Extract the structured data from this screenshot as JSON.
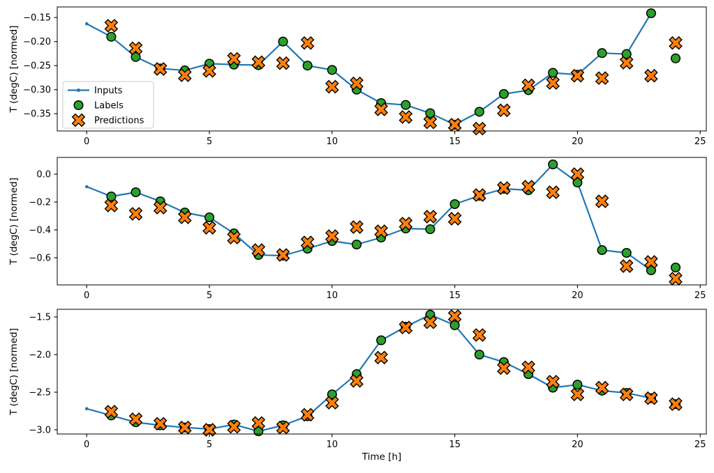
{
  "figure": {
    "xlabel": "Time [h]",
    "ylabel": "T (degC) [normed]",
    "background": "#ffffff",
    "legend": {
      "items": [
        {
          "label": "Inputs",
          "kind": "line",
          "color": "#1f77b4"
        },
        {
          "label": "Labels",
          "kind": "circle",
          "color": "#2ca02c"
        },
        {
          "label": "Predictions",
          "kind": "x",
          "color": "#ff7f0e"
        }
      ]
    },
    "colors": {
      "inputs_line": "#1f77b4",
      "labels_marker": "#2ca02c",
      "predictions_marker": "#ff7f0e",
      "marker_edge": "#000000",
      "axes_frame": "#000000",
      "legend_border": "#cccccc"
    }
  },
  "chart_data": [
    {
      "type": "line",
      "ylabel": "T (degC) [normed]",
      "xlim": [
        -1.2,
        25.25
      ],
      "ylim": [
        -0.386,
        -0.128
      ],
      "xticks": [
        0,
        5,
        10,
        15,
        20,
        25
      ],
      "xticklabels": [
        "0",
        "5",
        "10",
        "15",
        "20",
        "25"
      ],
      "yticks": [
        -0.15,
        -0.2,
        -0.25,
        -0.3,
        -0.35
      ],
      "yticklabels": [
        "−0.15",
        "−0.20",
        "−0.25",
        "−0.30",
        "−0.35"
      ],
      "legend": true,
      "series": [
        {
          "name": "Inputs",
          "kind": "line-with-dots",
          "color": "#1f77b4",
          "x": [
            0,
            1,
            2,
            3,
            4,
            5,
            6,
            7,
            8,
            9,
            10,
            11,
            12,
            13,
            14,
            15,
            16,
            17,
            18,
            19,
            20,
            21,
            22,
            23
          ],
          "y": [
            -0.163,
            -0.19,
            -0.232,
            -0.256,
            -0.26,
            -0.246,
            -0.248,
            -0.249,
            -0.2,
            -0.25,
            -0.259,
            -0.3,
            -0.328,
            -0.332,
            -0.349,
            -0.373,
            -0.346,
            -0.309,
            -0.301,
            -0.265,
            -0.269,
            -0.224,
            -0.226,
            -0.141
          ]
        },
        {
          "name": "Labels",
          "kind": "scatter-circle",
          "color": "#2ca02c",
          "edge": "#000000",
          "x": [
            1,
            2,
            3,
            4,
            5,
            6,
            7,
            8,
            9,
            10,
            11,
            12,
            13,
            14,
            15,
            16,
            17,
            18,
            19,
            20,
            21,
            22,
            23,
            24
          ],
          "y": [
            -0.19,
            -0.232,
            -0.256,
            -0.26,
            -0.246,
            -0.248,
            -0.249,
            -0.2,
            -0.25,
            -0.259,
            -0.3,
            -0.328,
            -0.332,
            -0.349,
            -0.373,
            -0.346,
            -0.309,
            -0.301,
            -0.265,
            -0.269,
            -0.224,
            -0.226,
            -0.141,
            -0.235
          ]
        },
        {
          "name": "Predictions",
          "kind": "scatter-x",
          "color": "#ff7f0e",
          "edge": "#000000",
          "x": [
            1,
            2,
            3,
            4,
            5,
            6,
            7,
            8,
            9,
            10,
            11,
            12,
            13,
            14,
            15,
            16,
            17,
            18,
            19,
            20,
            21,
            22,
            23,
            24
          ],
          "y": [
            -0.167,
            -0.214,
            -0.257,
            -0.27,
            -0.261,
            -0.236,
            -0.243,
            -0.245,
            -0.203,
            -0.294,
            -0.287,
            -0.341,
            -0.357,
            -0.368,
            -0.373,
            -0.381,
            -0.343,
            -0.291,
            -0.286,
            -0.271,
            -0.276,
            -0.244,
            -0.271,
            -0.203
          ]
        }
      ]
    },
    {
      "type": "line",
      "ylabel": "T (degC) [normed]",
      "xlim": [
        -1.2,
        25.25
      ],
      "ylim": [
        -0.795,
        0.12
      ],
      "xticks": [
        0,
        5,
        10,
        15,
        20,
        25
      ],
      "xticklabels": [
        "0",
        "5",
        "10",
        "15",
        "20",
        "25"
      ],
      "yticks": [
        0.0,
        -0.2,
        -0.4,
        -0.6
      ],
      "yticklabels": [
        "0.0",
        "−0.2",
        "−0.4",
        "−0.6"
      ],
      "legend": false,
      "series": [
        {
          "name": "Inputs",
          "kind": "line-with-dots",
          "color": "#1f77b4",
          "x": [
            0,
            1,
            2,
            3,
            4,
            5,
            6,
            7,
            8,
            9,
            10,
            11,
            12,
            13,
            14,
            15,
            16,
            17,
            18,
            19,
            20,
            21,
            22,
            23
          ],
          "y": [
            -0.09,
            -0.16,
            -0.13,
            -0.195,
            -0.275,
            -0.31,
            -0.425,
            -0.58,
            -0.585,
            -0.535,
            -0.48,
            -0.505,
            -0.455,
            -0.39,
            -0.395,
            -0.215,
            -0.155,
            -0.105,
            -0.115,
            0.07,
            -0.06,
            -0.545,
            -0.565,
            -0.69
          ]
        },
        {
          "name": "Labels",
          "kind": "scatter-circle",
          "color": "#2ca02c",
          "edge": "#000000",
          "x": [
            1,
            2,
            3,
            4,
            5,
            6,
            7,
            8,
            9,
            10,
            11,
            12,
            13,
            14,
            15,
            16,
            17,
            18,
            19,
            20,
            21,
            22,
            23,
            24
          ],
          "y": [
            -0.16,
            -0.13,
            -0.195,
            -0.275,
            -0.31,
            -0.425,
            -0.58,
            -0.585,
            -0.535,
            -0.48,
            -0.505,
            -0.455,
            -0.39,
            -0.395,
            -0.215,
            -0.155,
            -0.105,
            -0.115,
            0.07,
            -0.06,
            -0.545,
            -0.565,
            -0.69,
            -0.67
          ]
        },
        {
          "name": "Predictions",
          "kind": "scatter-x",
          "color": "#ff7f0e",
          "edge": "#000000",
          "x": [
            1,
            2,
            3,
            4,
            5,
            6,
            7,
            8,
            9,
            10,
            11,
            12,
            13,
            14,
            15,
            16,
            17,
            18,
            19,
            20,
            21,
            22,
            23,
            24
          ],
          "y": [
            -0.225,
            -0.285,
            -0.24,
            -0.31,
            -0.385,
            -0.455,
            -0.545,
            -0.58,
            -0.49,
            -0.445,
            -0.38,
            -0.41,
            -0.355,
            -0.305,
            -0.32,
            -0.15,
            -0.1,
            -0.09,
            -0.13,
            0.0,
            -0.195,
            -0.66,
            -0.63,
            -0.75
          ]
        }
      ]
    },
    {
      "type": "line",
      "ylabel": "T (degC) [normed]",
      "xlim": [
        -1.2,
        25.25
      ],
      "ylim": [
        -3.056,
        -1.398
      ],
      "xticks": [
        0,
        5,
        10,
        15,
        20,
        25
      ],
      "xticklabels": [
        "0",
        "5",
        "10",
        "15",
        "20",
        "25"
      ],
      "yticks": [
        -1.5,
        -2.0,
        -2.5,
        -3.0
      ],
      "yticklabels": [
        "−1.5",
        "−2.0",
        "−2.5",
        "−3.0"
      ],
      "legend": false,
      "series": [
        {
          "name": "Inputs",
          "kind": "line-with-dots",
          "color": "#1f77b4",
          "x": [
            0,
            1,
            2,
            3,
            4,
            5,
            6,
            7,
            8,
            9,
            10,
            11,
            12,
            13,
            14,
            15,
            16,
            17,
            18,
            19,
            20,
            21,
            22,
            23
          ],
          "y": [
            -2.72,
            -2.81,
            -2.9,
            -2.94,
            -2.97,
            -2.99,
            -2.93,
            -3.02,
            -2.94,
            -2.82,
            -2.53,
            -2.26,
            -1.81,
            -1.63,
            -1.47,
            -1.61,
            -2.0,
            -2.1,
            -2.26,
            -2.44,
            -2.4,
            -2.48,
            -2.51,
            -2.58
          ]
        },
        {
          "name": "Labels",
          "kind": "scatter-circle",
          "color": "#2ca02c",
          "edge": "#000000",
          "x": [
            1,
            2,
            3,
            4,
            5,
            6,
            7,
            8,
            9,
            10,
            11,
            12,
            13,
            14,
            15,
            16,
            17,
            18,
            19,
            20,
            21,
            22,
            23,
            24
          ],
          "y": [
            -2.81,
            -2.9,
            -2.94,
            -2.97,
            -2.99,
            -2.93,
            -3.02,
            -2.94,
            -2.82,
            -2.53,
            -2.26,
            -1.81,
            -1.63,
            -1.47,
            -1.61,
            -2.0,
            -2.1,
            -2.26,
            -2.44,
            -2.4,
            -2.48,
            -2.51,
            -2.58,
            -2.66
          ]
        },
        {
          "name": "Predictions",
          "kind": "scatter-x",
          "color": "#ff7f0e",
          "edge": "#000000",
          "x": [
            1,
            2,
            3,
            4,
            5,
            6,
            7,
            8,
            9,
            10,
            11,
            12,
            13,
            14,
            15,
            16,
            17,
            18,
            19,
            20,
            21,
            22,
            23,
            24
          ],
          "y": [
            -2.76,
            -2.86,
            -2.92,
            -2.97,
            -3.0,
            -2.96,
            -2.91,
            -2.97,
            -2.8,
            -2.64,
            -2.35,
            -2.04,
            -1.64,
            -1.57,
            -1.49,
            -1.74,
            -2.18,
            -2.17,
            -2.36,
            -2.53,
            -2.44,
            -2.53,
            -2.58,
            -2.66
          ]
        }
      ]
    }
  ]
}
